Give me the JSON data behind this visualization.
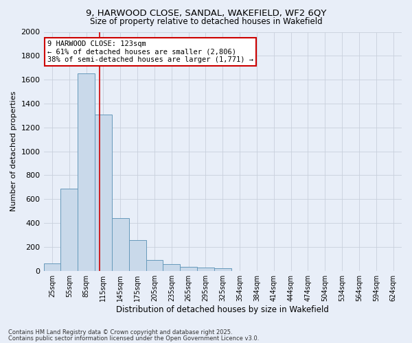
{
  "title_line1": "9, HARWOOD CLOSE, SANDAL, WAKEFIELD, WF2 6QY",
  "title_line2": "Size of property relative to detached houses in Wakefield",
  "xlabel": "Distribution of detached houses by size in Wakefield",
  "ylabel": "Number of detached properties",
  "categories": [
    "25sqm",
    "55sqm",
    "85sqm",
    "115sqm",
    "145sqm",
    "175sqm",
    "205sqm",
    "235sqm",
    "265sqm",
    "295sqm",
    "325sqm",
    "354sqm",
    "384sqm",
    "414sqm",
    "444sqm",
    "474sqm",
    "504sqm",
    "534sqm",
    "564sqm",
    "594sqm",
    "624sqm"
  ],
  "values": [
    60,
    690,
    1650,
    1310,
    440,
    255,
    90,
    55,
    35,
    25,
    20,
    0,
    0,
    0,
    0,
    0,
    0,
    0,
    0,
    0,
    0
  ],
  "bar_color": "#c9d9ea",
  "bar_edge_color": "#6699bb",
  "grid_color": "#c8d0dc",
  "annotation_text": "9 HARWOOD CLOSE: 123sqm\n← 61% of detached houses are smaller (2,806)\n38% of semi-detached houses are larger (1,771) →",
  "annotation_box_facecolor": "#ffffff",
  "annotation_border_color": "#cc0000",
  "red_line_color": "#cc0000",
  "ylim": [
    0,
    2000
  ],
  "yticks": [
    0,
    200,
    400,
    600,
    800,
    1000,
    1200,
    1400,
    1600,
    1800,
    2000
  ],
  "footnote_line1": "Contains HM Land Registry data © Crown copyright and database right 2025.",
  "footnote_line2": "Contains public sector information licensed under the Open Government Licence v3.0.",
  "bg_color": "#e8eef8"
}
